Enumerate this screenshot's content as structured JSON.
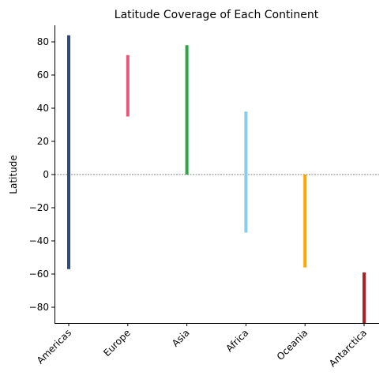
{
  "chart_data": {
    "type": "bar",
    "title": "Latitude Coverage of Each Continent",
    "xlabel": "",
    "ylabel": "Latitude",
    "ylim": [
      -90,
      90
    ],
    "yticks": [
      -80,
      -60,
      -40,
      -20,
      0,
      20,
      40,
      60,
      80
    ],
    "grid": false,
    "reference_line": {
      "y": 0,
      "style": "dashed"
    },
    "categories": [
      "Americas",
      "Europe",
      "Asia",
      "Africa",
      "Oceania",
      "Antarctica"
    ],
    "ranges": [
      {
        "name": "Americas",
        "min": -57,
        "max": 84,
        "color": "#2e4a7d"
      },
      {
        "name": "Europe",
        "min": 35,
        "max": 72,
        "color": "#e8567c"
      },
      {
        "name": "Asia",
        "min": 0,
        "max": 78,
        "color": "#2ca644"
      },
      {
        "name": "Africa",
        "min": -35,
        "max": 38,
        "color": "#87ceeb"
      },
      {
        "name": "Oceania",
        "min": -56,
        "max": 0,
        "color": "#ffa500"
      },
      {
        "name": "Antarctica",
        "min": -90,
        "max": -59,
        "color": "#b22222"
      }
    ]
  }
}
